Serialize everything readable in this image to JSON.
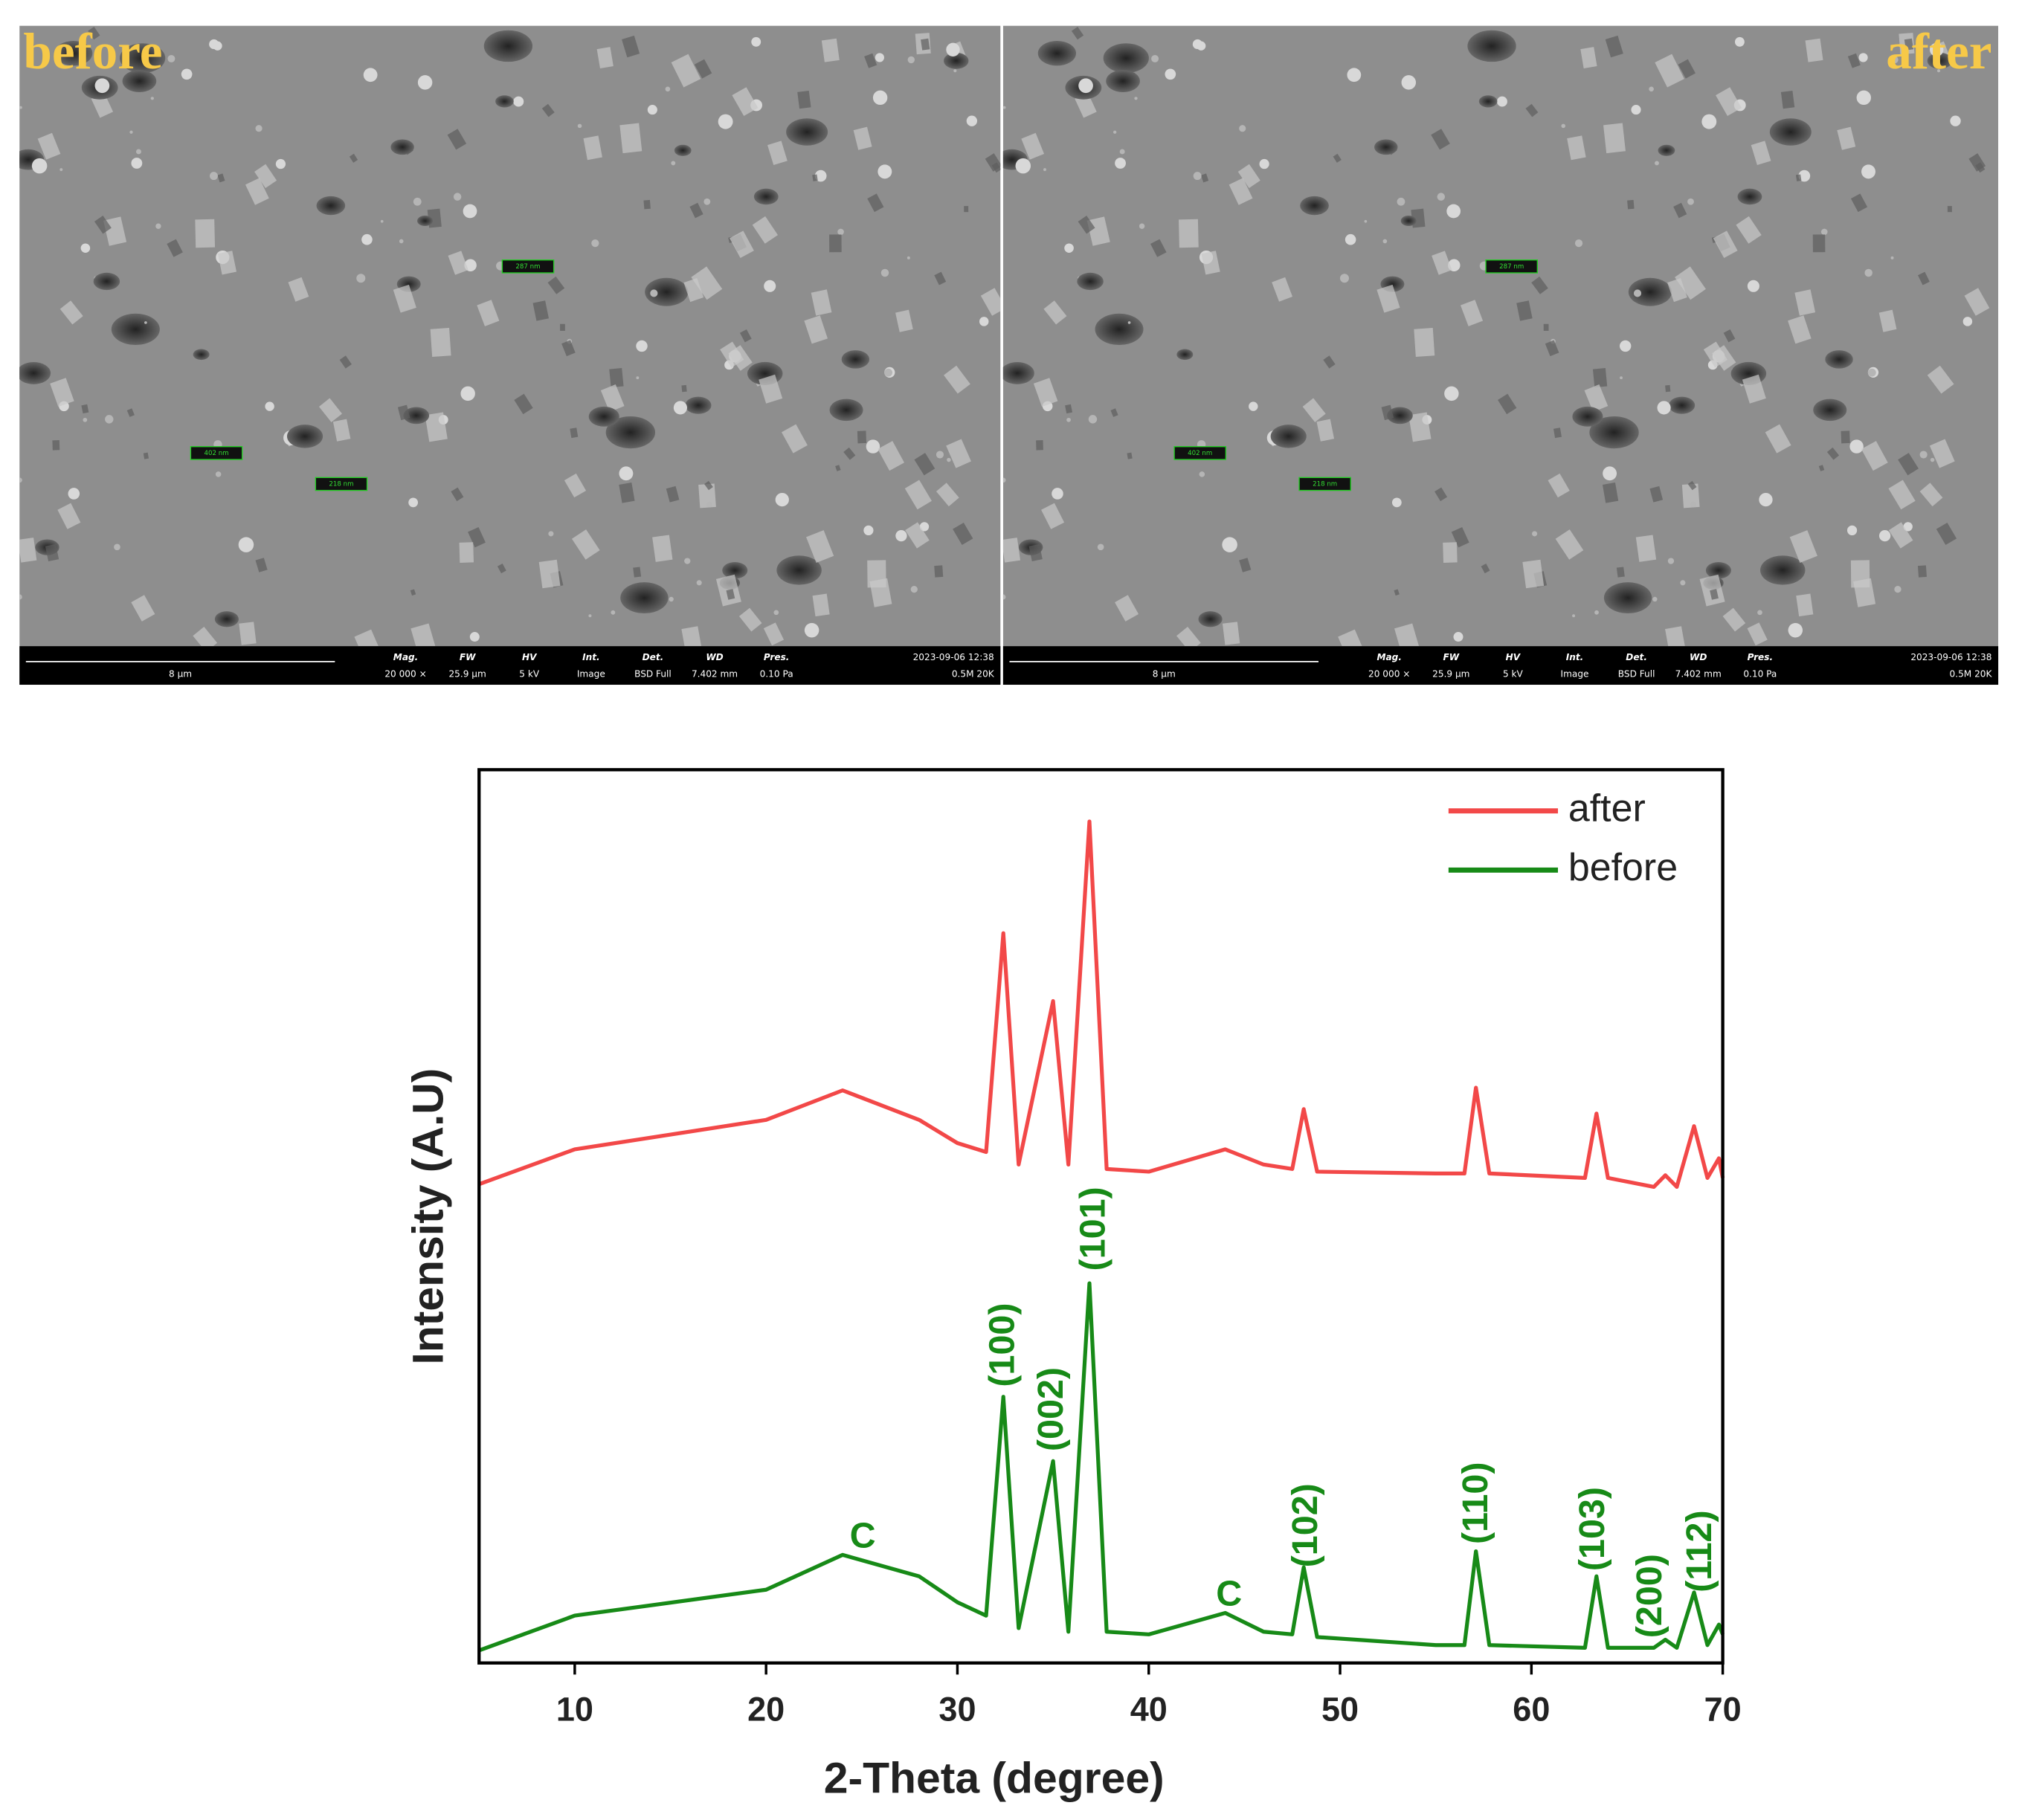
{
  "sem_panels": [
    {
      "label": "before",
      "scale_bar": "8 µm",
      "measurements": [
        "287 nm",
        "402 nm",
        "218 nm"
      ],
      "info": [
        {
          "name": "Mag.",
          "value": "20 000 ×"
        },
        {
          "name": "FW",
          "value": "25.9 µm"
        },
        {
          "name": "HV",
          "value": "5 kV"
        },
        {
          "name": "Int.",
          "value": "Image"
        },
        {
          "name": "Det.",
          "value": "BSD Full"
        },
        {
          "name": "WD",
          "value": "7.402 mm"
        },
        {
          "name": "Pres.",
          "value": "0.10 Pa"
        }
      ],
      "timestamp": "2023-09-06 12:38",
      "extra": "0.5M 20K"
    },
    {
      "label": "after",
      "scale_bar": "8 µm",
      "measurements": [
        "287 nm",
        "402 nm",
        "218 nm"
      ],
      "info": [
        {
          "name": "Mag.",
          "value": "20 000 ×"
        },
        {
          "name": "FW",
          "value": "25.9 µm"
        },
        {
          "name": "HV",
          "value": "5 kV"
        },
        {
          "name": "Int.",
          "value": "Image"
        },
        {
          "name": "Det.",
          "value": "BSD Full"
        },
        {
          "name": "WD",
          "value": "7.402 mm"
        },
        {
          "name": "Pres.",
          "value": "0.10 Pa"
        }
      ],
      "timestamp": "2023-09-06 12:38",
      "extra": "0.5M 20K"
    }
  ],
  "chart_data": {
    "type": "line",
    "x_label": "2-Theta (degree)",
    "y_label": "Intensity (A.U)",
    "x": [
      5,
      10,
      20,
      24,
      28,
      30,
      31.5,
      32.4,
      33.2,
      35,
      35.8,
      36.9,
      37.8,
      40,
      44,
      46,
      47.5,
      48.1,
      48.8,
      55,
      56.5,
      57.1,
      57.8,
      62.8,
      63.4,
      64,
      66.4,
      67,
      67.6,
      68.5,
      69.2,
      69.8,
      70
    ],
    "series": [
      {
        "name": "after",
        "color": "#f24848",
        "values": [
          53.6,
          57.5,
          60.8,
          64.1,
          60.8,
          58.2,
          57.2,
          81.7,
          55.8,
          74.1,
          55.8,
          94.2,
          55.3,
          55.0,
          57.5,
          55.8,
          55.3,
          62.0,
          55.0,
          54.8,
          54.8,
          64.4,
          54.8,
          54.3,
          61.5,
          54.3,
          53.3,
          54.6,
          53.3,
          60.1,
          54.3,
          56.5,
          54.3
        ]
      },
      {
        "name": "before",
        "color": "#178a17",
        "values": [
          1.4,
          5.3,
          8.2,
          12.1,
          9.7,
          6.8,
          5.3,
          29.8,
          3.9,
          22.6,
          3.5,
          42.5,
          3.5,
          3.2,
          5.6,
          3.5,
          3.2,
          10.7,
          2.9,
          2.0,
          2.0,
          12.5,
          2.0,
          1.7,
          9.7,
          1.7,
          1.7,
          2.6,
          1.7,
          7.9,
          2.0,
          4.3,
          3.2
        ]
      }
    ],
    "xlim": [
      5,
      70
    ],
    "xticks": [
      10,
      20,
      30,
      40,
      50,
      60,
      70
    ],
    "ylim": [
      0,
      100
    ],
    "legend": "upper right",
    "annotations": [
      {
        "text": "C",
        "x": 25.05,
        "y": 14.0
      },
      {
        "text": "(100)",
        "x": 32.45,
        "y": 35.6
      },
      {
        "text": "(002)",
        "x": 35.0,
        "y": 28.4
      },
      {
        "text": "(101)",
        "x": 37.2,
        "y": 48.6
      },
      {
        "text": "C",
        "x": 44.2,
        "y": 7.5
      },
      {
        "text": "(102)",
        "x": 48.3,
        "y": 15.4
      },
      {
        "text": "(110)",
        "x": 57.2,
        "y": 17.9
      },
      {
        "text": "(103)",
        "x": 63.3,
        "y": 15.0
      },
      {
        "text": "(200)",
        "x": 66.3,
        "y": 7.5
      },
      {
        "text": "(112)",
        "x": 68.9,
        "y": 12.5
      }
    ]
  }
}
